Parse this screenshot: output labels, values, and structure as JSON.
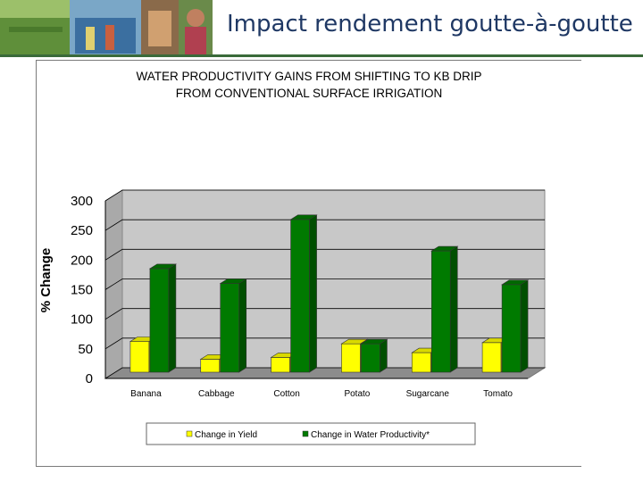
{
  "slide": {
    "title": "Impact rendement goutte-à-goutte"
  },
  "colors": {
    "yield": "#ffff00",
    "water_productivity": "#007a00",
    "wall": "#c8c8c8",
    "title_text": "#1f3864",
    "rule": "#3a6a3a"
  },
  "chart_data": {
    "type": "bar",
    "title": "WATER PRODUCTIVITY GAINS FROM SHIFTING TO KB DRIP",
    "subtitle": "FROM CONVENTIONAL SURFACE IRRIGATION",
    "xlabel": "",
    "ylabel": "% Change",
    "ylim": [
      0,
      300
    ],
    "yticks": [
      0,
      50,
      100,
      150,
      200,
      250,
      300
    ],
    "grid": true,
    "legend_position": "bottom",
    "categories": [
      "Banana",
      "Cabbage",
      "Cotton",
      "Potato",
      "Sugarcane",
      "Tomato"
    ],
    "series": [
      {
        "name": "Change in Yield",
        "values": [
          52,
          22,
          25,
          48,
          33,
          50
        ]
      },
      {
        "name": "Change in Water Productivity*",
        "values": [
          175,
          150,
          258,
          48,
          205,
          148
        ]
      }
    ]
  }
}
